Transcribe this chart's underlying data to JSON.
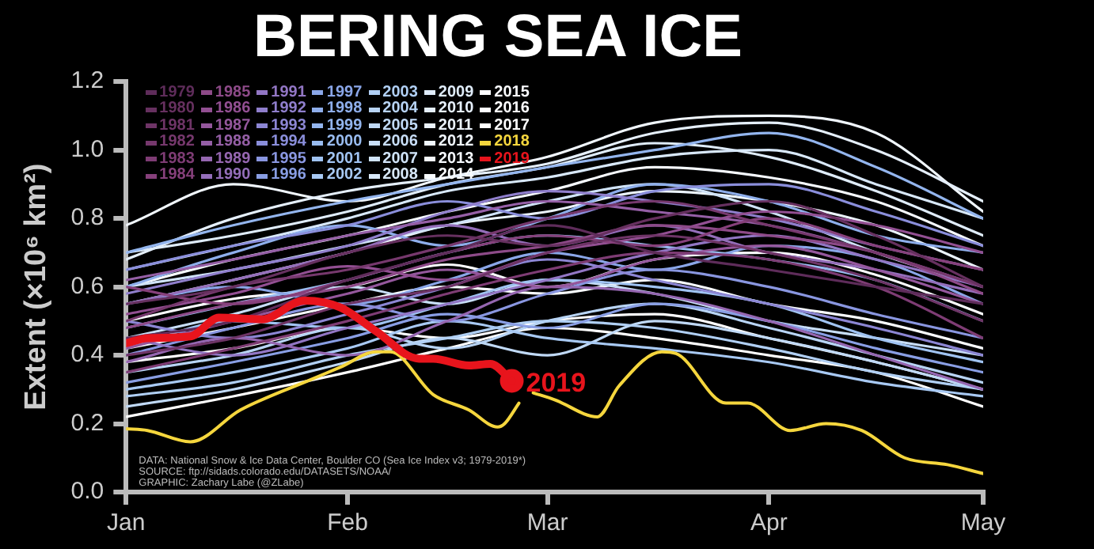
{
  "chart_data": {
    "type": "line",
    "title": "BERING SEA ICE",
    "ylabel": "Extent (×10⁶ km²)",
    "x": [
      "--01-01",
      "--01-16",
      "--02-01",
      "--02-15",
      "--03-01",
      "--03-16",
      "--04-01",
      "--04-16",
      "--05-01"
    ],
    "xlim": [
      "--01-01",
      "--05-01"
    ],
    "xticks": [
      {
        "value": "--01-01",
        "label": "Jan"
      },
      {
        "value": "--02-01",
        "label": "Feb"
      },
      {
        "value": "--03-01",
        "label": "Mar"
      },
      {
        "value": "--04-01",
        "label": "Apr"
      },
      {
        "value": "--05-01",
        "label": "May"
      }
    ],
    "ylim": [
      0,
      1.2
    ],
    "yticks": [
      {
        "value": 0,
        "label": "0.0"
      },
      {
        "value": 0.2,
        "label": "0.2"
      },
      {
        "value": 0.4,
        "label": "0.4"
      },
      {
        "value": 0.6,
        "label": "0.6"
      },
      {
        "value": 0.8,
        "label": "0.8"
      },
      {
        "value": 1,
        "label": "1.0"
      },
      {
        "value": 1.2,
        "label": "1.2"
      }
    ],
    "grid": false,
    "legend": "top left",
    "line_style": "solid",
    "marker": "none",
    "annotations": [
      "DATA: National Snow & Ice Data Center, Boulder CO (Sea Ice Index v3; 1979-2019*)",
      "SOURCE: ftp://sidads.colorado.edu/DATASETS/NOAA/",
      "GRAPHIC: Zachary Labe (@ZLabe)"
    ],
    "series": [
      {
        "name": "1979",
        "color": "#5e2c5a",
        "values": [
          0.45,
          0.5,
          0.62,
          0.7,
          0.78,
          0.7,
          0.65,
          0.6,
          0.55
        ]
      },
      {
        "name": "1980",
        "color": "#66305f",
        "values": [
          0.55,
          0.6,
          0.7,
          0.75,
          0.72,
          0.8,
          0.85,
          0.75,
          0.6
        ]
      },
      {
        "name": "1981",
        "color": "#6e3466",
        "values": [
          0.4,
          0.45,
          0.55,
          0.6,
          0.7,
          0.75,
          0.7,
          0.62,
          0.5
        ]
      },
      {
        "name": "1982",
        "color": "#76386d",
        "values": [
          0.5,
          0.6,
          0.65,
          0.72,
          0.8,
          0.85,
          0.78,
          0.7,
          0.6
        ]
      },
      {
        "name": "1983",
        "color": "#7e3c74",
        "values": [
          0.35,
          0.42,
          0.5,
          0.58,
          0.65,
          0.7,
          0.68,
          0.6,
          0.45
        ]
      },
      {
        "name": "1984",
        "color": "#86407b",
        "values": [
          0.6,
          0.55,
          0.62,
          0.7,
          0.75,
          0.72,
          0.8,
          0.72,
          0.65
        ]
      },
      {
        "name": "1985",
        "color": "#8d4a88",
        "values": [
          0.48,
          0.55,
          0.6,
          0.68,
          0.72,
          0.78,
          0.75,
          0.7,
          0.58
        ]
      },
      {
        "name": "1986",
        "color": "#924f92",
        "values": [
          0.52,
          0.58,
          0.66,
          0.62,
          0.7,
          0.75,
          0.82,
          0.78,
          0.7
        ]
      },
      {
        "name": "1987",
        "color": "#94579c",
        "values": [
          0.42,
          0.5,
          0.58,
          0.65,
          0.6,
          0.68,
          0.72,
          0.65,
          0.55
        ]
      },
      {
        "name": "1988",
        "color": "#955fa6",
        "values": [
          0.62,
          0.68,
          0.75,
          0.8,
          0.85,
          0.82,
          0.78,
          0.7,
          0.6
        ]
      },
      {
        "name": "1989",
        "color": "#9566b0",
        "values": [
          0.38,
          0.45,
          0.4,
          0.5,
          0.6,
          0.58,
          0.5,
          0.4,
          0.3
        ]
      },
      {
        "name": "1990",
        "color": "#946eba",
        "values": [
          0.55,
          0.62,
          0.7,
          0.78,
          0.72,
          0.78,
          0.7,
          0.65,
          0.58
        ]
      },
      {
        "name": "1991",
        "color": "#9276c4",
        "values": [
          0.45,
          0.4,
          0.48,
          0.55,
          0.62,
          0.7,
          0.75,
          0.68,
          0.6
        ]
      },
      {
        "name": "1992",
        "color": "#8f7ecc",
        "values": [
          0.58,
          0.65,
          0.72,
          0.82,
          0.88,
          0.85,
          0.8,
          0.72,
          0.65
        ]
      },
      {
        "name": "1993",
        "color": "#8c86d4",
        "values": [
          0.5,
          0.45,
          0.52,
          0.6,
          0.68,
          0.62,
          0.55,
          0.48,
          0.4
        ]
      },
      {
        "name": "1994",
        "color": "#8a8edb",
        "values": [
          0.65,
          0.72,
          0.78,
          0.85,
          0.8,
          0.88,
          0.9,
          0.82,
          0.72
        ]
      },
      {
        "name": "1995",
        "color": "#8996e0",
        "values": [
          0.4,
          0.48,
          0.55,
          0.5,
          0.58,
          0.65,
          0.6,
          0.52,
          0.45
        ]
      },
      {
        "name": "1996",
        "color": "#899ee4",
        "values": [
          0.32,
          0.38,
          0.45,
          0.52,
          0.48,
          0.55,
          0.5,
          0.42,
          0.35
        ]
      },
      {
        "name": "1997",
        "color": "#8aa6e8",
        "values": [
          0.55,
          0.6,
          0.55,
          0.62,
          0.7,
          0.65,
          0.72,
          0.68,
          0.55
        ]
      },
      {
        "name": "1998",
        "color": "#8eaeeb",
        "values": [
          0.6,
          0.7,
          0.78,
          0.72,
          0.8,
          0.9,
          0.85,
          0.75,
          0.7
        ]
      },
      {
        "name": "1999",
        "color": "#93b5ee",
        "values": [
          0.7,
          0.78,
          0.85,
          0.9,
          0.95,
          1,
          1.05,
          0.95,
          0.8
        ]
      },
      {
        "name": "2000",
        "color": "#99bcf0",
        "values": [
          0.48,
          0.55,
          0.62,
          0.7,
          0.75,
          0.72,
          0.68,
          0.62,
          0.5
        ]
      },
      {
        "name": "2001",
        "color": "#a0c3f2",
        "values": [
          0.42,
          0.5,
          0.48,
          0.55,
          0.62,
          0.6,
          0.55,
          0.45,
          0.38
        ]
      },
      {
        "name": "2002",
        "color": "#a8c9f3",
        "values": [
          0.3,
          0.35,
          0.42,
          0.5,
          0.45,
          0.42,
          0.38,
          0.32,
          0.28
        ]
      },
      {
        "name": "2003",
        "color": "#b0cff4",
        "values": [
          0.28,
          0.32,
          0.4,
          0.45,
          0.5,
          0.48,
          0.42,
          0.35,
          0.3
        ]
      },
      {
        "name": "2004",
        "color": "#b8d4f5",
        "values": [
          0.35,
          0.4,
          0.48,
          0.42,
          0.5,
          0.55,
          0.48,
          0.4,
          0.32
        ]
      },
      {
        "name": "2005",
        "color": "#c0d9f6",
        "values": [
          0.25,
          0.3,
          0.38,
          0.45,
          0.4,
          0.5,
          0.45,
          0.38,
          0.3
        ]
      },
      {
        "name": "2006",
        "color": "#c8def7",
        "values": [
          0.45,
          0.52,
          0.6,
          0.55,
          0.62,
          0.58,
          0.5,
          0.45,
          0.4
        ]
      },
      {
        "name": "2007",
        "color": "#d0e3f8",
        "values": [
          0.6,
          0.65,
          0.72,
          0.78,
          0.85,
          0.9,
          0.82,
          0.7,
          0.6
        ]
      },
      {
        "name": "2008",
        "color": "#d8e8f9",
        "values": [
          0.65,
          0.72,
          0.8,
          0.88,
          0.92,
          0.98,
          1,
          0.9,
          0.8
        ]
      },
      {
        "name": "2009",
        "color": "#dfecfa",
        "values": [
          0.7,
          0.75,
          0.82,
          0.9,
          0.95,
          1.02,
          0.98,
          0.88,
          0.75
        ]
      },
      {
        "name": "2010",
        "color": "#e5effb",
        "values": [
          0.68,
          0.8,
          0.88,
          0.92,
          0.96,
          1.05,
          1.08,
          1,
          0.85
        ]
      },
      {
        "name": "2011",
        "color": "#ebf3fc",
        "values": [
          0.55,
          0.62,
          0.7,
          0.78,
          0.82,
          0.88,
          0.85,
          0.78,
          0.65
        ]
      },
      {
        "name": "2012",
        "color": "#f0f6fd",
        "values": [
          0.78,
          0.9,
          0.85,
          0.92,
          0.98,
          1.08,
          1.1,
          1.05,
          0.82
        ]
      },
      {
        "name": "2013",
        "color": "#f5f9fe",
        "values": [
          0.6,
          0.68,
          0.75,
          0.82,
          0.88,
          0.95,
          0.92,
          0.85,
          0.72
        ]
      },
      {
        "name": "2014",
        "color": "#f8fbfe",
        "values": [
          0.42,
          0.48,
          0.55,
          0.6,
          0.58,
          0.62,
          0.55,
          0.5,
          0.42
        ]
      },
      {
        "name": "2015",
        "color": "#fbfcff",
        "values": [
          0.5,
          0.565,
          0.6,
          0.665,
          0.6,
          0.68,
          0.7,
          0.635,
          0.52
        ]
      },
      {
        "name": "2016",
        "color": "#fdfdff",
        "values": [
          0.38,
          0.42,
          0.48,
          0.45,
          0.5,
          0.52,
          0.45,
          0.38,
          0.3
        ]
      },
      {
        "name": "2017",
        "color": "#ffffff",
        "values": [
          0.22,
          0.28,
          0.35,
          0.42,
          0.48,
          0.45,
          0.4,
          0.35,
          0.25
        ]
      },
      {
        "name": "2018",
        "color": "#f5d63d",
        "x": [
          "--01-01",
          "--01-04",
          "--01-10",
          "--01-17",
          "--01-27",
          "--01-31",
          "--02-05",
          "--02-07",
          "--02-13",
          "--02-18",
          "--02-22",
          "--02-23",
          "--02-25",
          "--02-26",
          "--02-27",
          "--03-02",
          "--03-08",
          "--03-11",
          "--03-17",
          "--03-19",
          "--03-26",
          "--03-29",
          "--04-04",
          "--04-09",
          "--04-14",
          "--04-20",
          "--04-26",
          "--05-01"
        ],
        "values": [
          0.185,
          0.18,
          0.147,
          0.24,
          0.33,
          0.365,
          0.41,
          0.41,
          0.285,
          0.24,
          0.19,
          0.2,
          0.26,
          null,
          0.29,
          0.27,
          0.22,
          0.31,
          0.41,
          0.405,
          0.26,
          0.26,
          0.18,
          0.2,
          0.18,
          0.1,
          0.08,
          0.054
        ]
      },
      {
        "name": "2019",
        "color": "#e8141c",
        "x": [
          "--01-01",
          "--01-04",
          "--01-10",
          "--01-14",
          "--01-20",
          "--01-26",
          "--01-31",
          "--02-05",
          "--02-11",
          "--02-13",
          "--02-18",
          "--02-21",
          "--02-24"
        ],
        "values": [
          0.435,
          0.45,
          0.455,
          0.51,
          0.505,
          0.56,
          0.54,
          0.47,
          0.39,
          0.39,
          0.37,
          0.375,
          0.325
        ]
      }
    ]
  }
}
